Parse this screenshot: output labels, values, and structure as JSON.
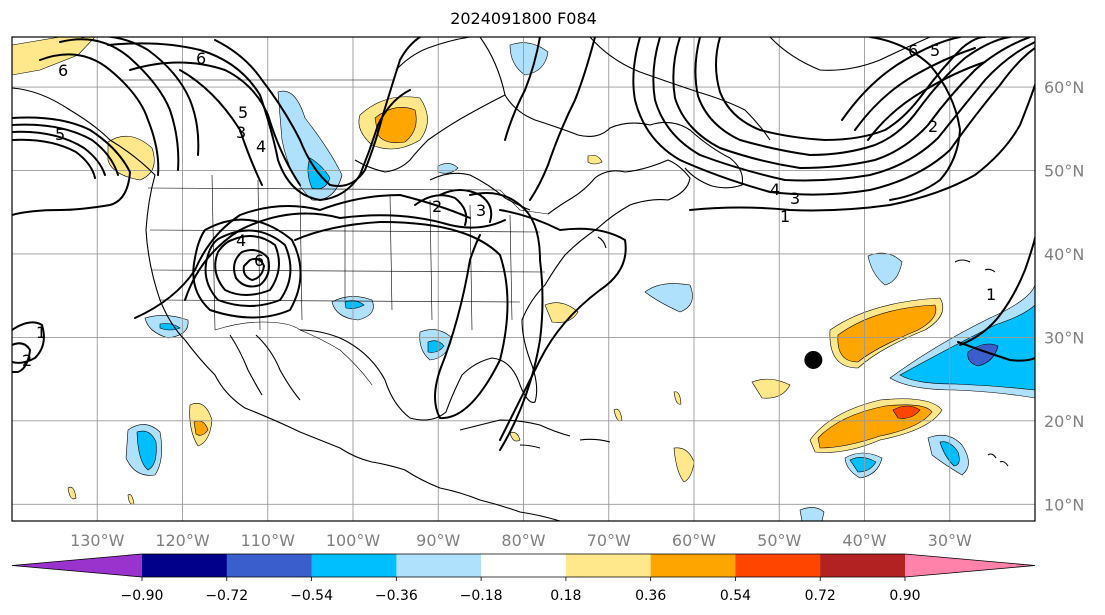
{
  "title": "2024091800 F084",
  "map": {
    "lon_range": [
      -140,
      -20
    ],
    "lat_range": [
      8,
      66
    ],
    "gridlines": true,
    "lon_ticks": [
      {
        "value": -130,
        "label": "130°W"
      },
      {
        "value": -120,
        "label": "120°W"
      },
      {
        "value": -110,
        "label": "110°W"
      },
      {
        "value": -100,
        "label": "100°W"
      },
      {
        "value": -90,
        "label": "90°W"
      },
      {
        "value": -80,
        "label": "80°W"
      },
      {
        "value": -70,
        "label": "70°W"
      },
      {
        "value": -60,
        "label": "60°W"
      },
      {
        "value": -50,
        "label": "50°W"
      },
      {
        "value": -40,
        "label": "40°W"
      },
      {
        "value": -30,
        "label": "30°W"
      }
    ],
    "lat_ticks": [
      {
        "value": 10,
        "label": "10°N"
      },
      {
        "value": 20,
        "label": "20°N"
      },
      {
        "value": 30,
        "label": "30°N"
      },
      {
        "value": 40,
        "label": "40°N"
      },
      {
        "value": 50,
        "label": "50°N"
      },
      {
        "value": 60,
        "label": "60°N"
      }
    ],
    "marker": {
      "lon": -46,
      "lat": 27.3,
      "color": "#000000"
    }
  },
  "colorbar": {
    "colors": [
      "#9a32cd",
      "#00008b",
      "#3a5fcd",
      "#00bfff",
      "#afe1fc",
      "#ffffff",
      "#ffe88c",
      "#ffa500",
      "#ff4500",
      "#b22222",
      "#ff82ab"
    ],
    "labels": [
      "−0.90",
      "−0.72",
      "−0.54",
      "−0.36",
      "−0.18",
      "0.18",
      "0.36",
      "0.54",
      "0.72",
      "0.90"
    ],
    "extend": "both"
  },
  "contour_labels": [
    "1",
    "2",
    "3",
    "4",
    "5",
    "6"
  ]
}
